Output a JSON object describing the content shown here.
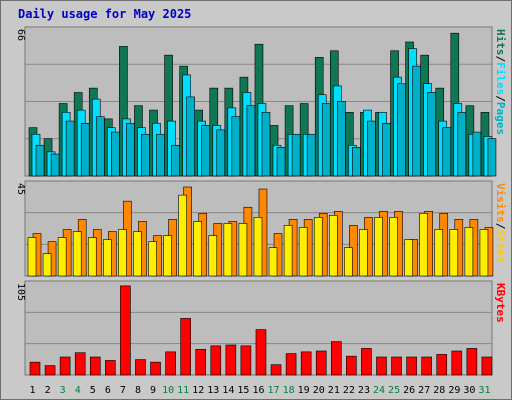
{
  "title": "Daily usage for May 2025",
  "colors": {
    "hits": "#0f7755",
    "files": "#00ddff",
    "pages": "#00b0c8",
    "visits": "#ff8800",
    "sites": "#ffee00",
    "kbytes": "#ff0000",
    "plot_bg": "#bdbdbd",
    "grid": "#888888"
  },
  "chart_data": [
    {
      "type": "bar",
      "title": "Daily usage for May 2025",
      "panel": "hits-files-pages",
      "y_max_label": "66",
      "ylim": [
        0,
        66
      ],
      "right_labels": [
        "Pages",
        "Files",
        "Hits"
      ],
      "categories": [
        "1",
        "2",
        "3",
        "4",
        "5",
        "6",
        "7",
        "8",
        "9",
        "10",
        "11",
        "12",
        "13",
        "14",
        "15",
        "16",
        "17",
        "18",
        "19",
        "20",
        "21",
        "22",
        "23",
        "24",
        "25",
        "26",
        "27",
        "28",
        "29",
        "30",
        "31"
      ],
      "series": [
        {
          "name": "Hits",
          "values": [
            22,
            17,
            33,
            38,
            40,
            26,
            59,
            32,
            30,
            55,
            50,
            30,
            40,
            40,
            45,
            60,
            23,
            32,
            33,
            54,
            57,
            29,
            29,
            29,
            57,
            61,
            55,
            40,
            65,
            32,
            29
          ]
        },
        {
          "name": "Files",
          "values": [
            19,
            11,
            29,
            30,
            35,
            22,
            26,
            22,
            24,
            25,
            46,
            25,
            23,
            31,
            38,
            33,
            14,
            19,
            19,
            37,
            41,
            14,
            30,
            29,
            45,
            58,
            42,
            25,
            33,
            19,
            18
          ]
        },
        {
          "name": "Pages",
          "values": [
            14,
            10,
            25,
            24,
            27,
            20,
            24,
            19,
            19,
            14,
            36,
            23,
            21,
            27,
            32,
            29,
            13,
            19,
            19,
            33,
            34,
            13,
            25,
            24,
            42,
            50,
            38,
            22,
            29,
            20,
            17
          ]
        }
      ]
    },
    {
      "type": "bar",
      "panel": "visits-sites",
      "y_max_label": "45",
      "ylim": [
        0,
        45
      ],
      "right_labels": [
        "Sites",
        "Visits"
      ],
      "categories": [
        "1",
        "2",
        "3",
        "4",
        "5",
        "6",
        "7",
        "8",
        "9",
        "10",
        "11",
        "12",
        "13",
        "14",
        "15",
        "16",
        "17",
        "18",
        "19",
        "20",
        "21",
        "22",
        "23",
        "24",
        "25",
        "26",
        "27",
        "28",
        "29",
        "30",
        "31"
      ],
      "series": [
        {
          "name": "Visits",
          "values": [
            21,
            17,
            23,
            28,
            23,
            22,
            37,
            27,
            20,
            28,
            44,
            31,
            26,
            27,
            34,
            43,
            21,
            28,
            28,
            31,
            32,
            25,
            29,
            32,
            32,
            18,
            32,
            31,
            28,
            28,
            24
          ]
        },
        {
          "name": "Sites",
          "values": [
            19,
            11,
            19,
            22,
            19,
            18,
            23,
            22,
            17,
            20,
            40,
            27,
            20,
            26,
            26,
            29,
            14,
            25,
            24,
            29,
            30,
            14,
            23,
            29,
            29,
            18,
            31,
            23,
            23,
            24,
            23
          ]
        }
      ]
    },
    {
      "type": "bar",
      "panel": "kbytes",
      "y_max_label": "105",
      "ylim": [
        0,
        105
      ],
      "right_labels": [
        "KBytes"
      ],
      "categories": [
        "1",
        "2",
        "3",
        "4",
        "5",
        "6",
        "7",
        "8",
        "9",
        "10",
        "11",
        "12",
        "13",
        "14",
        "15",
        "16",
        "17",
        "18",
        "19",
        "20",
        "21",
        "22",
        "23",
        "24",
        "25",
        "26",
        "27",
        "28",
        "29",
        "30",
        "31"
      ],
      "series": [
        {
          "name": "KBytes",
          "values": [
            15,
            11,
            21,
            26,
            21,
            17,
            104,
            18,
            15,
            27,
            66,
            30,
            34,
            35,
            34,
            53,
            12,
            25,
            27,
            28,
            39,
            22,
            31,
            21,
            21,
            21,
            21,
            24,
            28,
            31,
            21
          ]
        }
      ]
    }
  ],
  "x_labels": [
    "1",
    "2",
    "3",
    "4",
    "5",
    "6",
    "7",
    "8",
    "9",
    "10",
    "11",
    "12",
    "13",
    "14",
    "15",
    "16",
    "17",
    "18",
    "19",
    "20",
    "21",
    "22",
    "23",
    "24",
    "25",
    "26",
    "27",
    "28",
    "29",
    "30",
    "31"
  ],
  "weekend_days": [
    "3",
    "4",
    "10",
    "11",
    "17",
    "18",
    "24",
    "25",
    "31"
  ]
}
